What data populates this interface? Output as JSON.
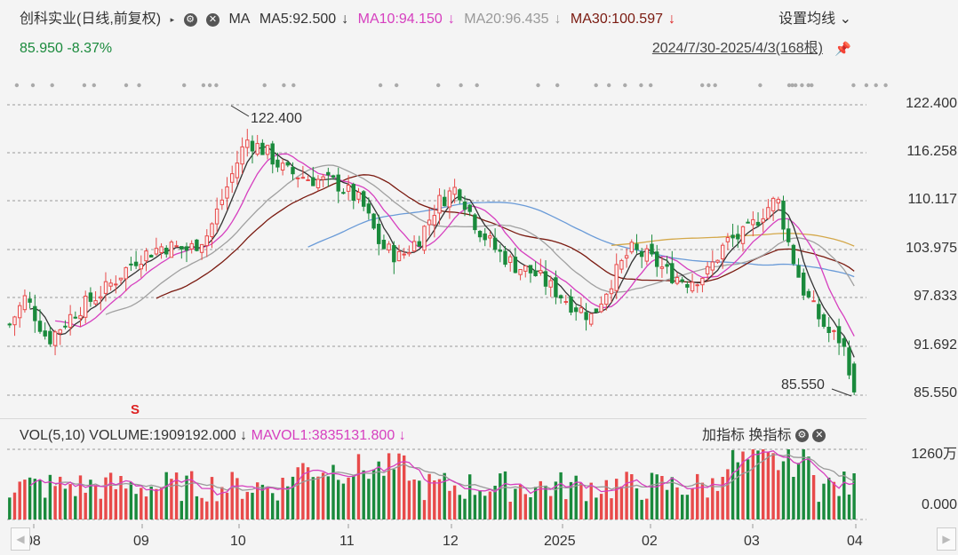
{
  "header": {
    "stock_title": "创科实业(日线,前复权)",
    "ma_label": "MA",
    "ma5": "MA5:92.500",
    "ma10": "MA10:94.150",
    "ma20": "MA20:96.435",
    "ma30": "MA30:100.597",
    "down_arrow": "↓",
    "settings_label": "设置均线",
    "settings_chevron": "⌄",
    "price": "85.950",
    "change": "-8.37%",
    "date_range": "2024/7/30-2025/4/3(168根)"
  },
  "price_axis": [
    "122.400",
    "116.258",
    "110.117",
    "103.975",
    "97.833",
    "91.692",
    "85.550"
  ],
  "annotations": {
    "high_label": "122.400",
    "low_label": "85.550",
    "signal_mark": "S"
  },
  "volume_panel": {
    "title": "VOL(5,10)",
    "volume": "VOLUME:1909192.000",
    "mavol1": "MAVOL1:3835131.800",
    "down_arrow": "↓",
    "add_indicator": "加指标",
    "switch_indicator": "换指标",
    "axis_top": "1260万",
    "axis_bottom": "0.000"
  },
  "x_axis": [
    "08",
    "09",
    "10",
    "11",
    "12",
    "2025",
    "02",
    "03",
    "04"
  ],
  "colors": {
    "up": "#e84a4a",
    "down": "#1a8a3c",
    "ma5": "#333333",
    "ma10": "#d63fbf",
    "ma20": "#a0a0a0",
    "ma30": "#7a1a10",
    "ma60": "#6a9bd8",
    "ma120": "#d4a84a"
  },
  "icons": [
    "settings-gear-icon",
    "close-icon",
    "pin-icon",
    "nav-left-icon",
    "nav-right-icon"
  ],
  "chart_data": {
    "type": "candlestick",
    "range_label": "2024/7/30-2025/4/3(168根)",
    "ylim": [
      85.55,
      122.4
    ],
    "x_ticks": [
      "08",
      "09",
      "10",
      "11",
      "12",
      "2025",
      "02",
      "03",
      "04"
    ],
    "last_close": 85.95,
    "change_pct": -8.37,
    "high": 122.4,
    "low": 85.55,
    "series": [
      {
        "name": "MA5",
        "last": 92.5
      },
      {
        "name": "MA10",
        "last": 94.15
      },
      {
        "name": "MA20",
        "last": 96.435
      },
      {
        "name": "MA30",
        "last": 100.597
      },
      {
        "name": "MAVOL1",
        "last": 3835131.8
      },
      {
        "name": "VOLUME",
        "last": 1909192.0
      }
    ]
  }
}
